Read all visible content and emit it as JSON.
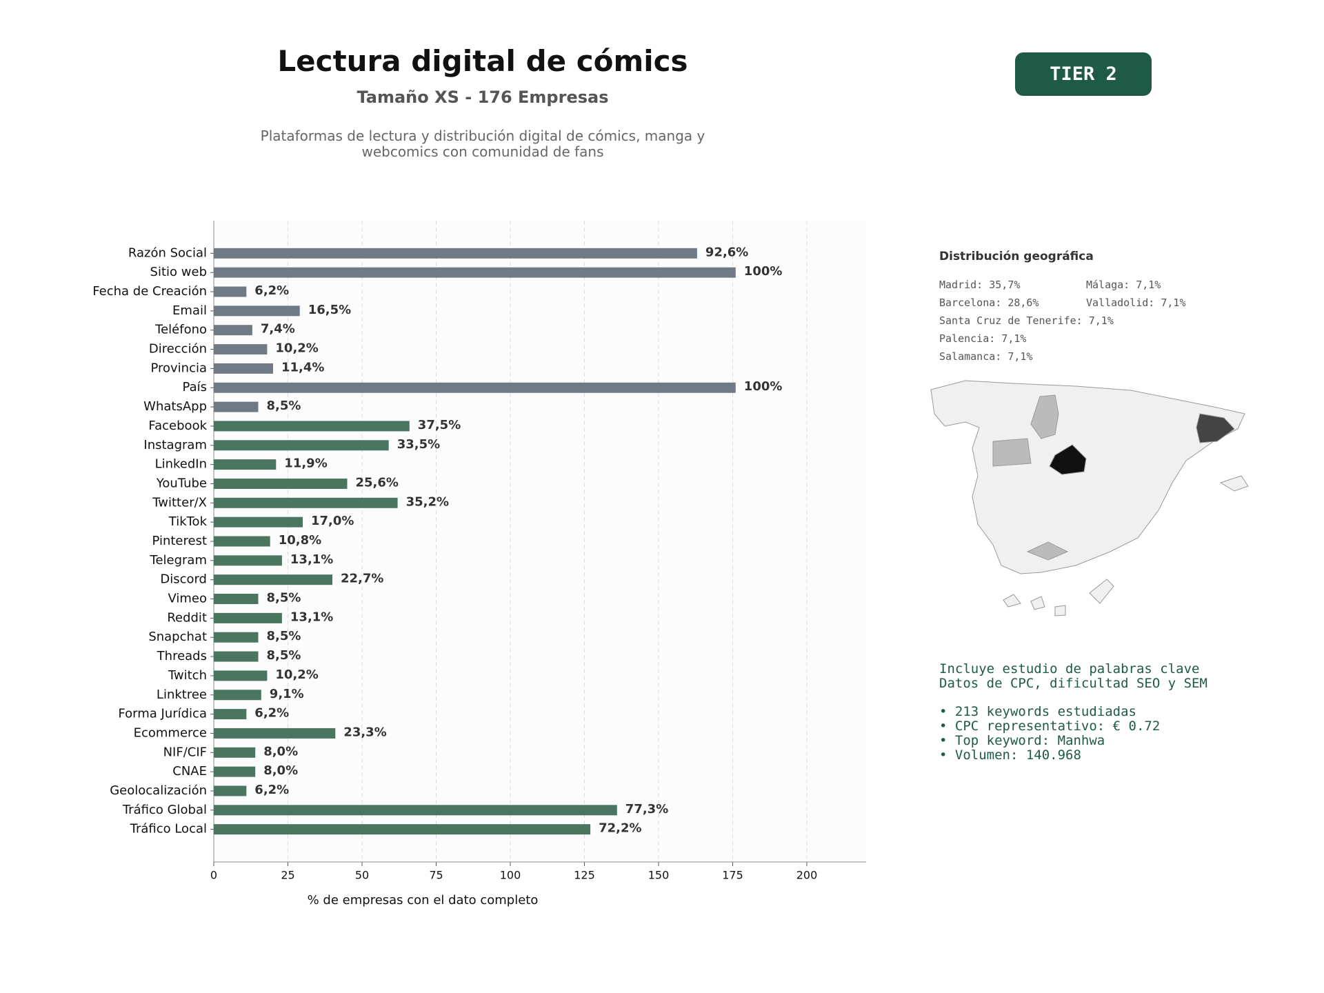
{
  "chart_data": {
    "type": "barh",
    "title": "Lectura digital de cómics",
    "subtitle": "Tamaño XS - 176 Empresas",
    "description": "Plataformas de lectura y distribución digital de cómics, manga y webcomics con comunidad de fans",
    "xlabel": "% de empresas con el dato completo",
    "categories": [
      "Razón Social",
      "Sitio web",
      "Fecha de Creación",
      "Email",
      "Teléfono",
      "Dirección",
      "Provincia",
      "País",
      "WhatsApp",
      "Facebook",
      "Instagram",
      "LinkedIn",
      "YouTube",
      "Twitter/X",
      "TikTok",
      "Pinterest",
      "Telegram",
      "Discord",
      "Vimeo",
      "Reddit",
      "Snapchat",
      "Threads",
      "Twitch",
      "Linktree",
      "Forma Jurídica",
      "Ecommerce",
      "NIF/CIF",
      "CNAE",
      "Geolocalización",
      "Tráfico Global",
      "Tráfico Local"
    ],
    "values": [
      163,
      176,
      11,
      29,
      13,
      18,
      20,
      176,
      15,
      66,
      59,
      21,
      45,
      62,
      30,
      19,
      23,
      40,
      15,
      23,
      15,
      15,
      18,
      16,
      11,
      41,
      14,
      14,
      11,
      136,
      127
    ],
    "value_labels": [
      "92,6%",
      "100%",
      "6,2%",
      "16,5%",
      "7,4%",
      "10,2%",
      "11,4%",
      "100%",
      "8,5%",
      "37,5%",
      "33,5%",
      "11,9%",
      "25,6%",
      "35,2%",
      "17,0%",
      "10,8%",
      "13,1%",
      "22,7%",
      "8,5%",
      "13,1%",
      "8,5%",
      "8,5%",
      "10,2%",
      "9,1%",
      "6,2%",
      "23,3%",
      "8,0%",
      "8,0%",
      "6,2%",
      "77,3%",
      "72,2%"
    ],
    "colors": [
      "#707a85",
      "#707a85",
      "#707a85",
      "#707a85",
      "#707a85",
      "#707a85",
      "#707a85",
      "#707a85",
      "#707a85",
      "#4a7561",
      "#4a7561",
      "#4a7561",
      "#4a7561",
      "#4a7561",
      "#4a7561",
      "#4a7561",
      "#4a7561",
      "#4a7561",
      "#4a7561",
      "#4a7561",
      "#4a7561",
      "#4a7561",
      "#4a7561",
      "#4a7561",
      "#4a7561",
      "#4a7561",
      "#4a7561",
      "#4a7561",
      "#4a7561",
      "#4a7561",
      "#4a7561"
    ],
    "xlim": [
      0,
      220
    ],
    "xticks": [
      0,
      25,
      50,
      75,
      100,
      125,
      150,
      175,
      200
    ],
    "grid": true
  },
  "badge": "TIER 2",
  "geo": {
    "title": "Distribución geográfica",
    "items": [
      "Madrid: 35,7%",
      "Málaga: 7,1%",
      "Barcelona: 28,6%",
      "Valladolid: 7,1%",
      "Santa Cruz de Tenerife: 7,1%",
      "Palencia: 7,1%",
      "Salamanca: 7,1%"
    ]
  },
  "keywords": {
    "lines": [
      "Incluye estudio de palabras clave",
      "Datos de CPC, dificultad SEO y SEM"
    ],
    "bullets": [
      "• 213 keywords estudiadas",
      "• CPC representativo: € 0.72",
      "• Top keyword: Manhwa",
      "• Volumen: 140.968"
    ]
  }
}
